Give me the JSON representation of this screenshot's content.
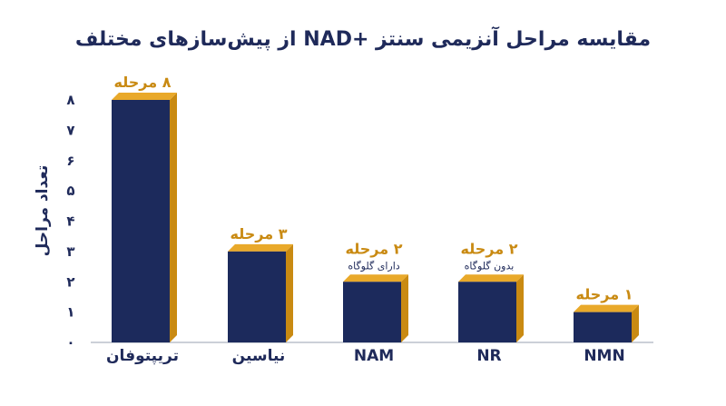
{
  "chart_data": {
    "type": "bar",
    "title": "مقایسه مراحل آنزیمی سنتز +NAD از پیش‌سازهای مختلف",
    "xlabel": "",
    "ylabel": "تعداد مراحل",
    "ylim": [
      0,
      8
    ],
    "yticks": [
      "۰",
      "۱",
      "۲",
      "۳",
      "۴",
      "۵",
      "۶",
      "۷",
      "۸"
    ],
    "categories": [
      "تریپتوفان",
      "نیاسین",
      "NAM",
      "NR",
      "NMN"
    ],
    "values": [
      8,
      3,
      2,
      2,
      1
    ],
    "data_labels": [
      "۸ مرحله",
      "۳ مرحله",
      "۲ مرحله",
      "۲ مرحله",
      "۱ مرحله"
    ],
    "sub_labels": [
      "",
      "",
      "دارای گلوگاه",
      "بدون گلوگاه",
      ""
    ],
    "grid": false,
    "colors": {
      "bar_front": "#1c2a5c",
      "bar_side": "#c98a12",
      "bar_top": "#e9a92a",
      "text": "#1f2a5a",
      "label": "#c98a12"
    }
  }
}
